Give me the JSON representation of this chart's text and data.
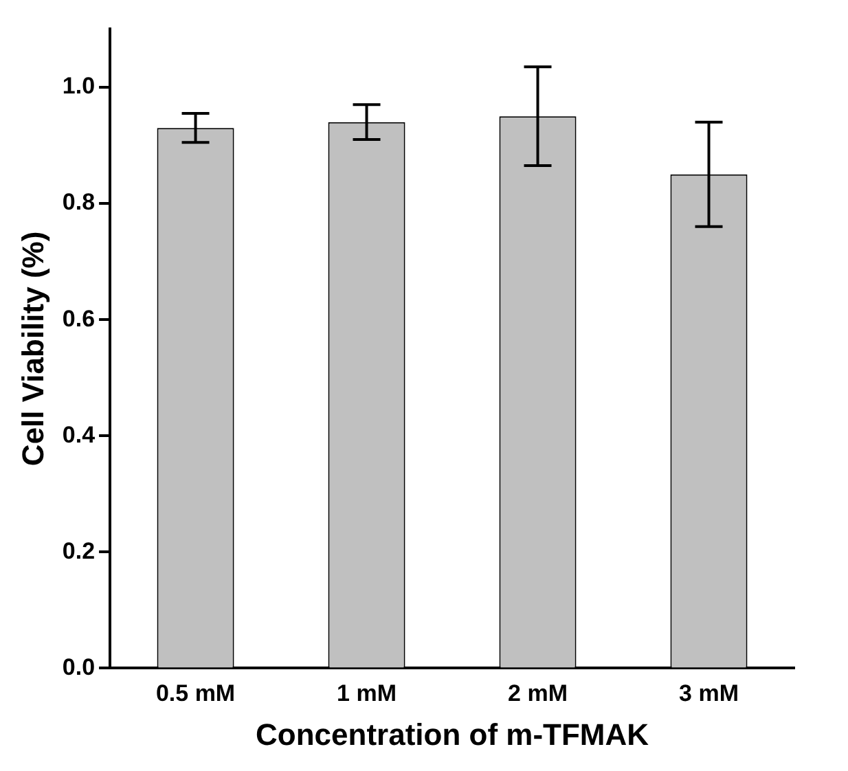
{
  "chart_data": {
    "type": "bar",
    "xlabel": "Concentration of m-TFMAK",
    "ylabel": "Cell Viability (%)",
    "categories": [
      "0.5 mM",
      "1 mM",
      "2 mM",
      "3 mM"
    ],
    "values": [
      0.93,
      0.94,
      0.95,
      0.85
    ],
    "errors": [
      0.025,
      0.03,
      0.085,
      0.09
    ],
    "color": "#c0c0c0",
    "ylim": [
      0,
      1.1
    ],
    "yticks": [
      {
        "value": 0,
        "label": "0.0"
      },
      0.2,
      0.4,
      0.6,
      0.8,
      {
        "value": 1,
        "label": "1.0"
      }
    ],
    "grid": false,
    "legend": false
  }
}
